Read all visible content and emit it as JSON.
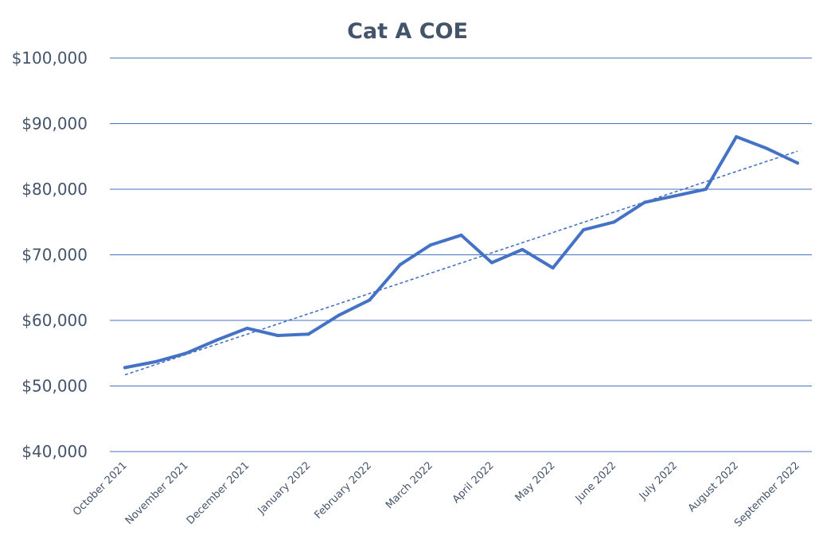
{
  "chart_data": {
    "type": "line",
    "title": "Cat A COE",
    "xlabel": "",
    "ylabel": "",
    "ylim": [
      40000,
      100000
    ],
    "y_ticks": [
      40000,
      50000,
      60000,
      70000,
      80000,
      90000,
      100000
    ],
    "y_tick_labels": [
      "$40,000",
      "$50,000",
      "$60,000",
      "$70,000",
      "$80,000",
      "$90,000",
      "$100,000"
    ],
    "x_tick_labels": [
      "October 2021",
      "November 2021",
      "December 2021",
      "January 2022",
      "February 2022",
      "March 2022",
      "April 2022",
      "May 2022",
      "June 2022",
      "July 2022",
      "August 2022",
      "September 2022"
    ],
    "grid": true,
    "legend": "none",
    "line_color": "#4472c4",
    "trendline": {
      "type": "linear",
      "style": "dashed",
      "color": "#4472c4",
      "start": 51700,
      "end": 85800
    },
    "series": [
      {
        "values": [
          52800,
          53700,
          55000,
          57000,
          58800,
          57700,
          57900,
          60800,
          63100,
          68500,
          71500,
          73000,
          68800,
          70800,
          68000,
          73800,
          75000,
          78000,
          79000,
          80000,
          88000,
          86200,
          84000
        ]
      }
    ]
  }
}
